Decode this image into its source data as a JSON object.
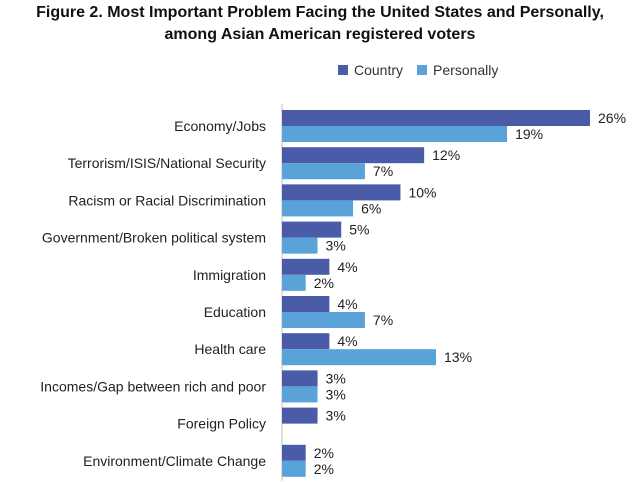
{
  "chart_data": {
    "type": "bar",
    "orientation": "horizontal",
    "title": "Figure 2. Most Important Problem Facing the United States and Personally,",
    "subtitle": "among Asian American registered voters",
    "legend_position": "top-right",
    "grid": false,
    "categories": [
      "Economy/Jobs",
      "Terrorism/ISIS/National Security",
      "Racism or Racial Discrimination",
      "Government/Broken political system",
      "Immigration",
      "Education",
      "Health care",
      "Incomes/Gap between rich and poor",
      "Foreign Policy",
      "Environment/Climate Change"
    ],
    "series": [
      {
        "name": "Country",
        "color": "#4a5ba7",
        "values": [
          26,
          12,
          10,
          5,
          4,
          4,
          4,
          3,
          3,
          2
        ],
        "labels": [
          "26%",
          "12%",
          "10%",
          "5%",
          "4%",
          "4%",
          "4%",
          "3%",
          "3%",
          "2%"
        ]
      },
      {
        "name": "Personally",
        "color": "#5aa3d8",
        "values": [
          19,
          7,
          6,
          3,
          2,
          7,
          13,
          3,
          null,
          2
        ],
        "labels": [
          "19%",
          "7%",
          "6%",
          "3%",
          "2%",
          "7%",
          "13%",
          "3%",
          null,
          "2%"
        ]
      }
    ],
    "xlim": [
      0,
      26
    ]
  }
}
